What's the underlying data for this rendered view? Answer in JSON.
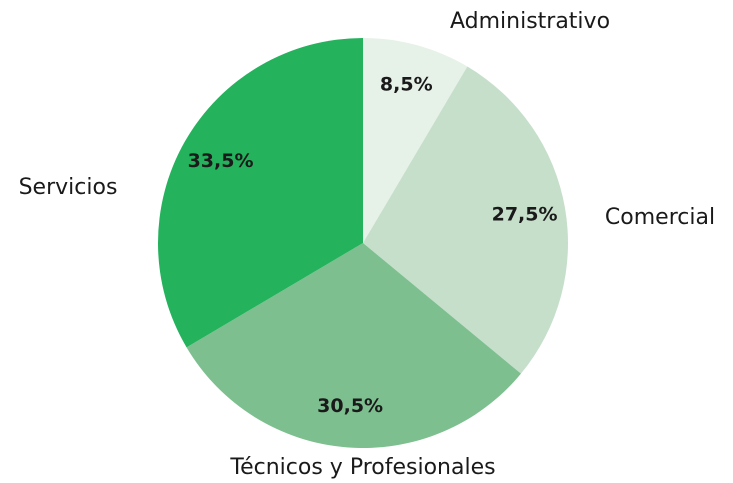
{
  "chart_data": {
    "type": "pie",
    "categories": [
      "Administrativo",
      "Comercial",
      "Técnicos y Profesionales",
      "Servicios"
    ],
    "values": [
      8.5,
      27.5,
      30.5,
      33.5
    ],
    "value_labels": [
      "8,5%",
      "27,5%",
      "30,5%",
      "33,5%"
    ],
    "colors": [
      "#e6f1e8",
      "#c6dfca",
      "#7dbf8f",
      "#24b25c"
    ]
  }
}
